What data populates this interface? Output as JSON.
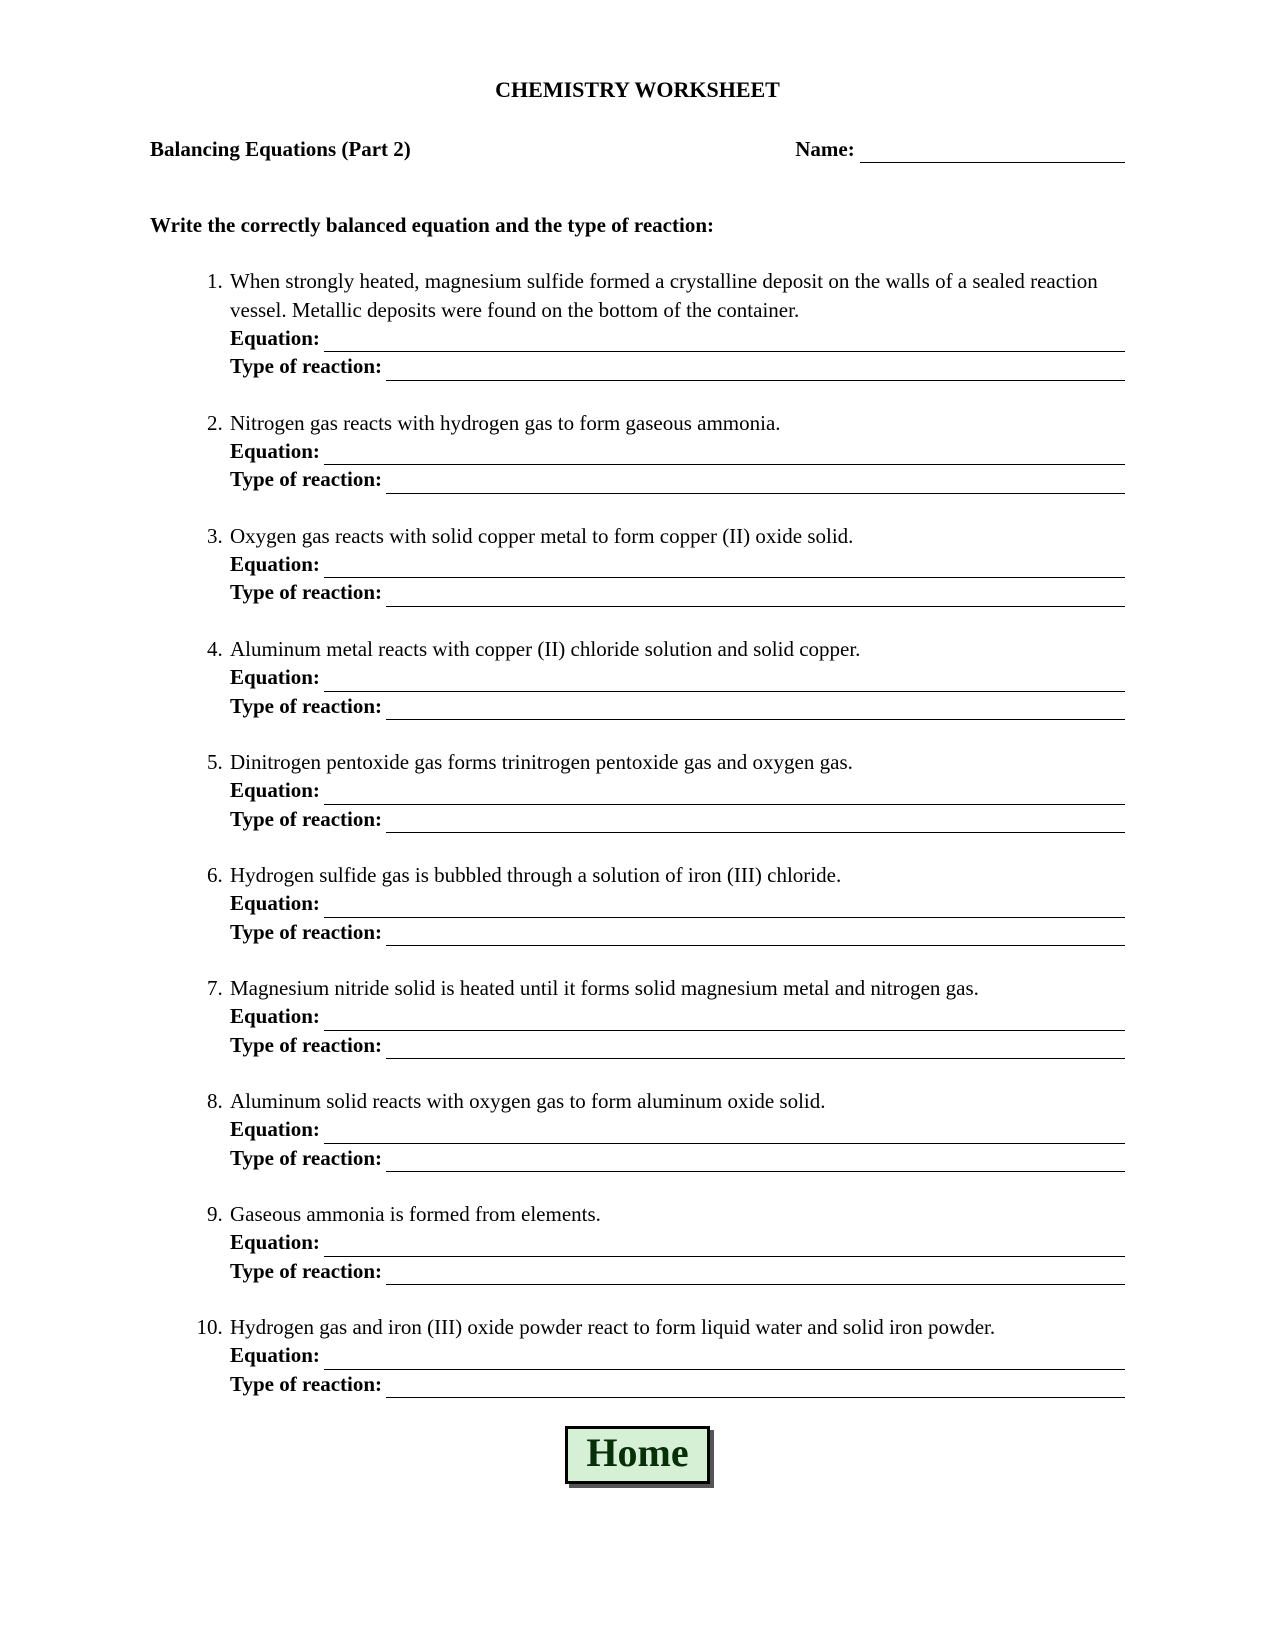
{
  "doc": {
    "title": "CHEMISTRY WORKSHEET",
    "subtitle": "Balancing Equations (Part 2)",
    "name_label": "Name:",
    "instructions": "Write the correctly balanced equation and the type of reaction:",
    "equation_label": "Equation:",
    "type_label": "Type of reaction:",
    "home_button": "Home"
  },
  "questions": [
    {
      "text": "When strongly heated, magnesium sulfide formed a crystalline deposit on the walls of a sealed reaction vessel.  Metallic deposits were found on the bottom of the container."
    },
    {
      "text": "Nitrogen gas reacts with hydrogen gas to form gaseous ammonia."
    },
    {
      "text": "Oxygen gas reacts with solid copper metal to form copper (II) oxide solid."
    },
    {
      "text": "Aluminum metal reacts with copper (II) chloride solution and solid copper."
    },
    {
      "text": "Dinitrogen pentoxide gas forms trinitrogen pentoxide gas and oxygen gas."
    },
    {
      "text": "Hydrogen sulfide gas is bubbled through a solution of iron (III) chloride."
    },
    {
      "text": "Magnesium nitride solid is heated until it forms solid magnesium metal and nitrogen gas."
    },
    {
      "text": "Aluminum solid reacts with oxygen gas to form aluminum oxide solid."
    },
    {
      "text": "Gaseous ammonia is formed from elements."
    },
    {
      "text": "Hydrogen gas and iron (III) oxide powder react to form liquid water and solid iron powder."
    }
  ],
  "styles": {
    "font_family": "Times New Roman",
    "title_fontsize": 22,
    "body_fontsize": 21,
    "text_color": "#000000",
    "background_color": "#ffffff",
    "home_button": {
      "font_family": "Comic Sans MS",
      "font_size": 40,
      "background_color": "#d6f0d6",
      "border_color": "#000000",
      "text_color": "#083008",
      "shadow_color": "#555555"
    },
    "underline_color": "#000000"
  }
}
